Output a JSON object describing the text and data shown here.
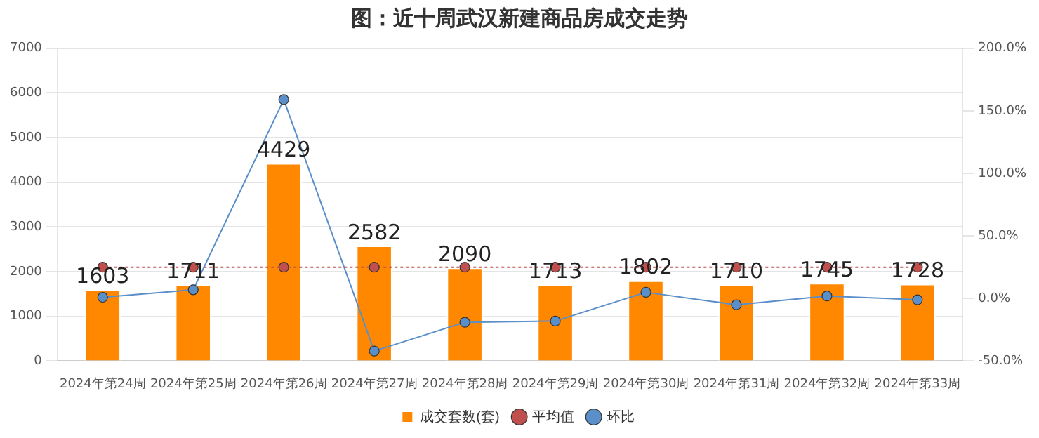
{
  "chart_data": {
    "type": "bar",
    "title": "图：近十周武汉新建商品房成交走势",
    "categories": [
      "2024年第24周",
      "2024年第25周",
      "2024年第26周",
      "2024年第27周",
      "2024年第28周",
      "2024年第29周",
      "2024年第30周",
      "2024年第31周",
      "2024年第32周",
      "2024年第33周"
    ],
    "series": [
      {
        "name": "成交套数(套)",
        "color": "#ff8800",
        "values": [
          1603,
          1711,
          4429,
          2582,
          2090,
          1713,
          1802,
          1710,
          1745,
          1728
        ],
        "value_labels": [
          "1603",
          "1711",
          "4429",
          "2582",
          "2090",
          "1713",
          "1802",
          "1710",
          "1745",
          "1728"
        ]
      },
      {
        "name": "平均值",
        "type": "line",
        "color": "#c0504d",
        "line_style": "dotted",
        "values": [
          2100,
          2100,
          2100,
          2100,
          2100,
          2100,
          2100,
          2100,
          2100,
          2100
        ]
      },
      {
        "name": "环比",
        "type": "line",
        "axis": "y2",
        "color": "#5b8fc9",
        "line_style": "solid",
        "values": [
          1,
          7,
          159,
          -42,
          -19,
          -18,
          5,
          -5,
          2,
          -1
        ]
      }
    ],
    "ylim": [
      0,
      7000
    ],
    "yticks": [
      0,
      1000,
      2000,
      3000,
      4000,
      5000,
      6000,
      7000
    ],
    "y2lim": [
      -50,
      200
    ],
    "y2ticks": [
      {
        "value": -50,
        "label": "-50.0%"
      },
      {
        "value": 0,
        "label": "0.0%"
      },
      {
        "value": 50,
        "label": "50.0%"
      },
      {
        "value": 100,
        "label": "100.0%"
      },
      {
        "value": 150,
        "label": "150.0%"
      },
      {
        "value": 200,
        "label": "200.0%"
      }
    ],
    "grid": "y",
    "legend": "bottom",
    "marker": "circle"
  }
}
